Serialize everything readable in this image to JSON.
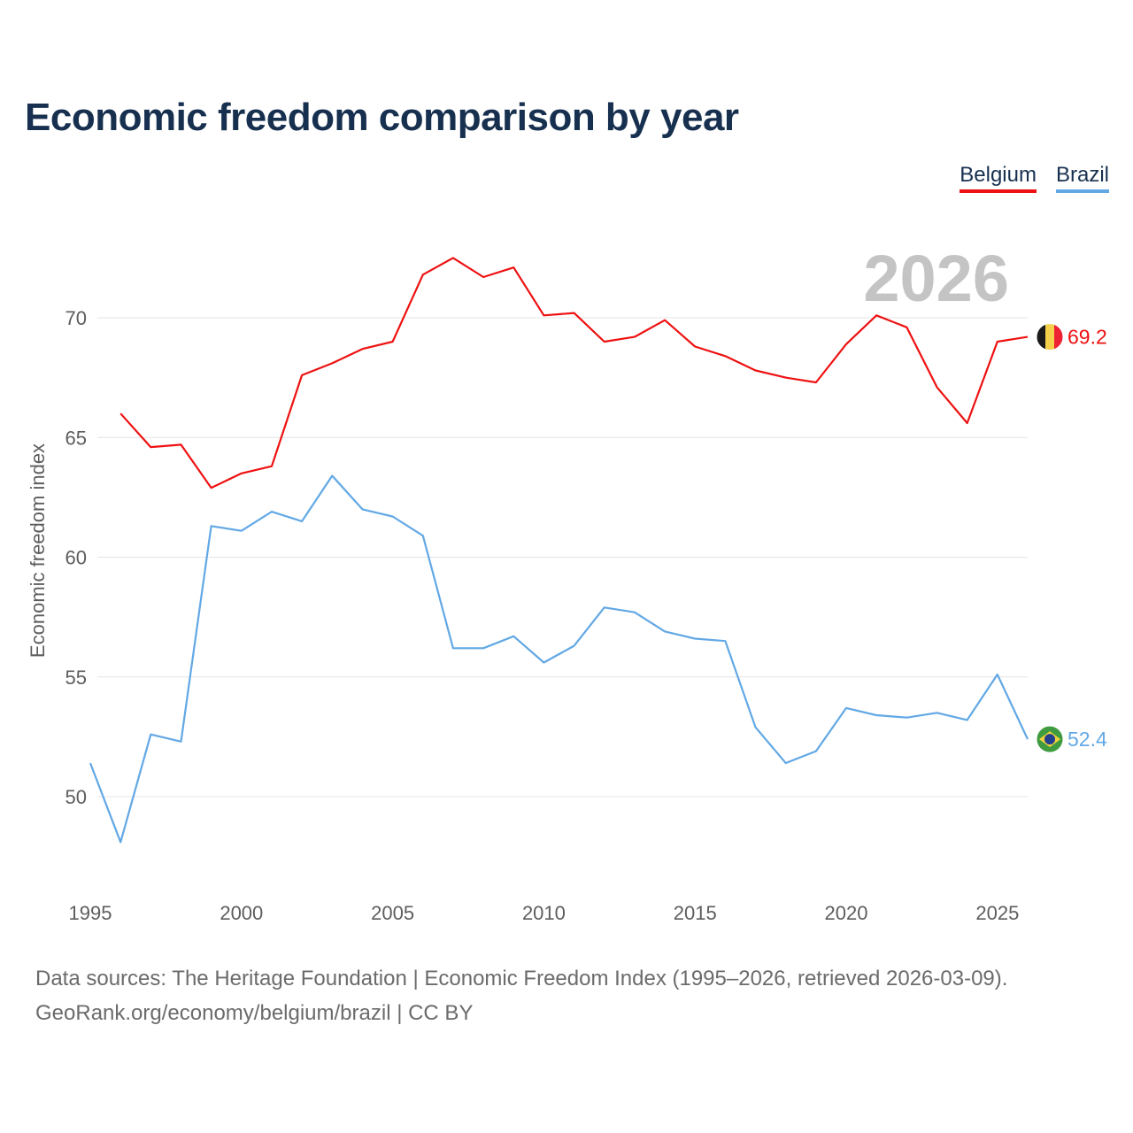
{
  "chart_data": {
    "type": "line",
    "title": "Economic freedom comparison by year",
    "ylabel": "Economic freedom index",
    "xlabel": "",
    "xlim": [
      1995,
      2026
    ],
    "ylim": [
      46,
      75
    ],
    "y_ticks": [
      50,
      55,
      60,
      65,
      70
    ],
    "x_ticks": [
      1995,
      2000,
      2005,
      2010,
      2015,
      2020,
      2025
    ],
    "current_year": "2026",
    "legend_position": "top-right",
    "series": [
      {
        "name": "Belgium",
        "color": "#ee1111",
        "last_value_label": "69.2",
        "points": [
          [
            1996,
            66.0
          ],
          [
            1997,
            64.6
          ],
          [
            1998,
            64.7
          ],
          [
            1999,
            62.9
          ],
          [
            2000,
            63.5
          ],
          [
            2001,
            63.8
          ],
          [
            2002,
            67.6
          ],
          [
            2003,
            68.1
          ],
          [
            2004,
            68.7
          ],
          [
            2005,
            69.0
          ],
          [
            2006,
            71.8
          ],
          [
            2007,
            72.5
          ],
          [
            2008,
            71.7
          ],
          [
            2009,
            72.1
          ],
          [
            2010,
            70.1
          ],
          [
            2011,
            70.2
          ],
          [
            2012,
            69.0
          ],
          [
            2013,
            69.2
          ],
          [
            2014,
            69.9
          ],
          [
            2015,
            68.8
          ],
          [
            2016,
            68.4
          ],
          [
            2017,
            67.8
          ],
          [
            2018,
            67.5
          ],
          [
            2019,
            67.3
          ],
          [
            2020,
            68.9
          ],
          [
            2021,
            70.1
          ],
          [
            2022,
            69.6
          ],
          [
            2023,
            67.1
          ],
          [
            2024,
            65.6
          ],
          [
            2025,
            69.0
          ],
          [
            2026,
            69.2
          ]
        ]
      },
      {
        "name": "Brazil",
        "color": "#62a8e5",
        "last_value_label": "52.4",
        "points": [
          [
            1995,
            51.4
          ],
          [
            1996,
            48.1
          ],
          [
            1997,
            52.6
          ],
          [
            1998,
            52.3
          ],
          [
            1999,
            61.3
          ],
          [
            2000,
            61.1
          ],
          [
            2001,
            61.9
          ],
          [
            2002,
            61.5
          ],
          [
            2003,
            63.4
          ],
          [
            2004,
            62.0
          ],
          [
            2005,
            61.7
          ],
          [
            2006,
            60.9
          ],
          [
            2007,
            56.2
          ],
          [
            2008,
            56.2
          ],
          [
            2009,
            56.7
          ],
          [
            2010,
            55.6
          ],
          [
            2011,
            56.3
          ],
          [
            2012,
            57.9
          ],
          [
            2013,
            57.7
          ],
          [
            2014,
            56.9
          ],
          [
            2015,
            56.6
          ],
          [
            2016,
            56.5
          ],
          [
            2017,
            52.9
          ],
          [
            2018,
            51.4
          ],
          [
            2019,
            51.9
          ],
          [
            2020,
            53.7
          ],
          [
            2021,
            53.4
          ],
          [
            2022,
            53.3
          ],
          [
            2023,
            53.5
          ],
          [
            2024,
            53.2
          ],
          [
            2025,
            55.1
          ],
          [
            2026,
            52.4
          ]
        ]
      }
    ]
  },
  "legend": {
    "items": [
      {
        "label": "Belgium",
        "color": "#ee1111"
      },
      {
        "label": "Brazil",
        "color": "#62a8e5"
      }
    ]
  },
  "footer": {
    "line1": "Data sources: The Heritage Foundation | Economic Freedom Index (1995–2026, retrieved 2026-03-09).",
    "line2": "GeoRank.org/economy/belgium/brazil | CC BY"
  },
  "flags": {
    "belgium": {
      "icon": "belgium-flag-icon",
      "colors": [
        "#1a1a1a",
        "#f5d04a",
        "#ee2233"
      ]
    },
    "brazil": {
      "icon": "brazil-flag-icon",
      "colors": [
        "#3f9b3f",
        "#f2d23c",
        "#23408f"
      ]
    }
  }
}
